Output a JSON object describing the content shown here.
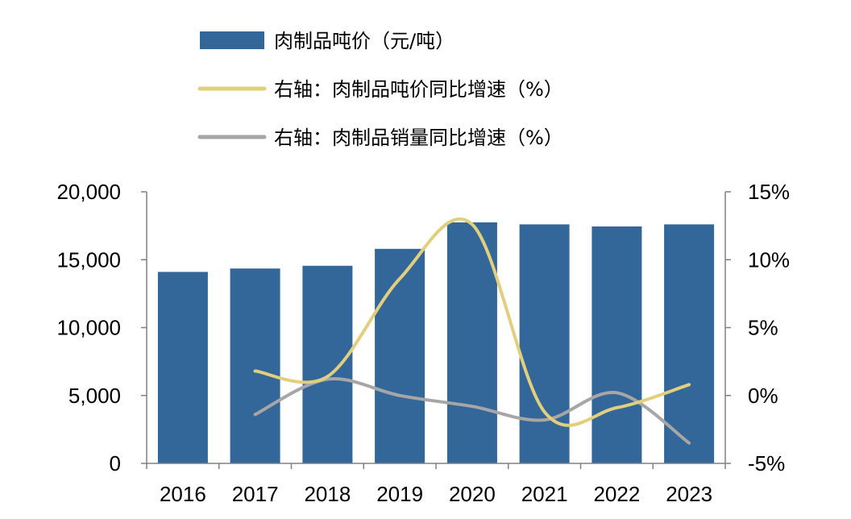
{
  "chart_data": {
    "type": "bar",
    "categories": [
      "2016",
      "2017",
      "2018",
      "2019",
      "2020",
      "2021",
      "2022",
      "2023"
    ],
    "series": [
      {
        "name": "肉制品吨价（元/吨）",
        "type": "bar",
        "axis": "left",
        "color": "#336699",
        "values": [
          14100,
          14350,
          14550,
          15800,
          17750,
          17600,
          17450,
          17600
        ]
      },
      {
        "name": "右轴：肉制品吨价同比增速（%）",
        "type": "line",
        "axis": "right",
        "color": "#E2CF7D",
        "values": [
          null,
          1.8,
          1.4,
          8.6,
          12.6,
          -1.2,
          -0.9,
          0.8
        ]
      },
      {
        "name": "右轴：肉制品销量同比增速（%）",
        "type": "line",
        "axis": "right",
        "color": "#A6A6A6",
        "values": [
          null,
          -1.4,
          1.2,
          0.0,
          -0.8,
          -1.8,
          0.2,
          -3.5
        ]
      }
    ],
    "left_axis": {
      "ylim": [
        0,
        20000
      ],
      "ticks": [
        0,
        5000,
        10000,
        15000,
        20000
      ],
      "tick_labels": [
        "0",
        "5,000",
        "10,000",
        "15,000",
        "20,000"
      ]
    },
    "right_axis": {
      "ylim": [
        -5,
        15
      ],
      "ticks": [
        -5,
        0,
        5,
        10,
        15
      ],
      "tick_labels": [
        "-5%",
        "0%",
        "5%",
        "10%",
        "15%"
      ]
    },
    "grid": false,
    "legend_position": "top"
  }
}
